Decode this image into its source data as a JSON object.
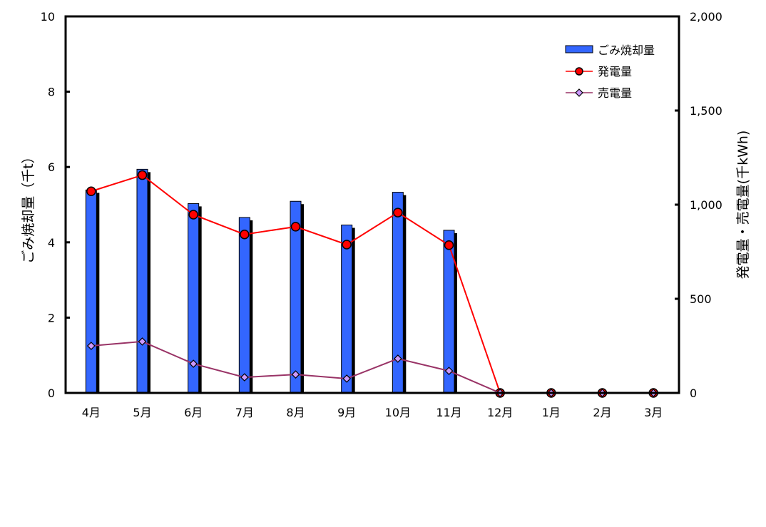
{
  "chart_data": {
    "type": "bar",
    "categories": [
      "4月",
      "5月",
      "6月",
      "7月",
      "8月",
      "9月",
      "10月",
      "11月",
      "12月",
      "1月",
      "2月",
      "3月"
    ],
    "series": [
      {
        "name": "ごみ焼却量",
        "type": "bar",
        "axis": "left",
        "color": "#3366ff",
        "values": [
          5.39,
          5.94,
          5.03,
          4.66,
          5.09,
          4.46,
          5.33,
          4.32,
          null,
          null,
          null,
          null
        ]
      },
      {
        "name": "発電量",
        "type": "line",
        "axis": "right",
        "color": "#ff0000",
        "marker": "circle",
        "values": [
          1071,
          1157,
          947,
          842,
          883,
          788,
          958,
          785,
          0,
          0,
          0,
          0
        ]
      },
      {
        "name": "売電量",
        "type": "line",
        "axis": "right",
        "color": "#993366",
        "marker": "diamond",
        "marker_color": "#cc99ff",
        "values": [
          250,
          273,
          155,
          83,
          98,
          76,
          182,
          117,
          0,
          0,
          0,
          0
        ]
      }
    ],
    "ylabel": "ごみ焼却量（千t）",
    "y2label": "発電量・売電量(千kWh)",
    "ylim": [
      0,
      10
    ],
    "y2lim": [
      0,
      2000
    ],
    "yticks": [
      "0",
      "2",
      "4",
      "6",
      "8",
      "10"
    ],
    "y2ticks": [
      "0",
      "500",
      "1,000",
      "1,500",
      "2,000"
    ],
    "legend_position": "top-right",
    "grid": false
  }
}
